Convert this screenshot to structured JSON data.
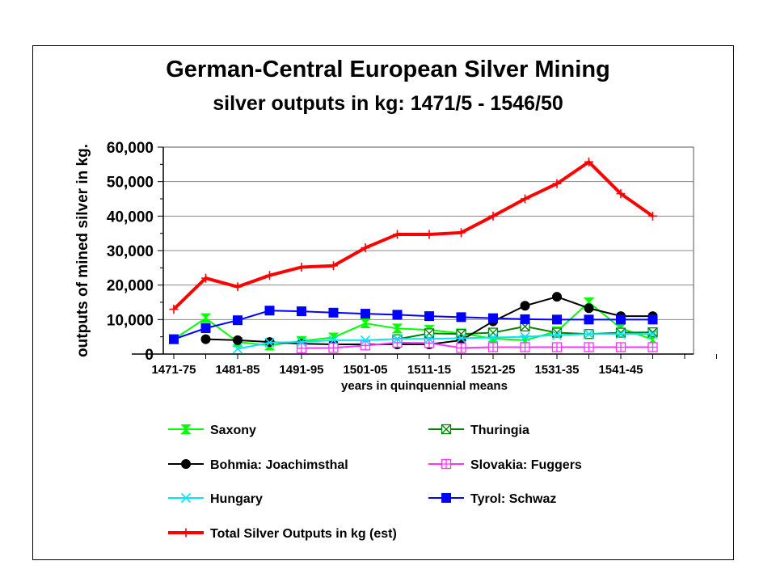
{
  "chart_data": {
    "type": "line",
    "title": "German-Central European Silver Mining",
    "subtitle": "silver outputs in kg: 1471/5 - 1546/50",
    "xlabel": "years in quinquennial means",
    "ylabel": "outputs of mined silver in kg.",
    "x_tick_labels": [
      "1471-75",
      "1481-85",
      "1491-95",
      "1501-05",
      "1511-15",
      "1521-25",
      "1531-35",
      "1541-45"
    ],
    "y_tick_labels": [
      "0",
      "10,000",
      "20,000",
      "30,000",
      "40,000",
      "50,000",
      "60,000"
    ],
    "ylim": [
      0,
      60000
    ],
    "grid": "horizontal",
    "legend_position": "bottom",
    "series": [
      {
        "name": "Saxony",
        "color": "#00ff00",
        "marker": "hourglass",
        "values": [
          4300,
          10400,
          3500,
          2500,
          3800,
          4800,
          8900,
          7400,
          7000,
          6000,
          4500,
          4000,
          6600,
          15000,
          7500,
          4200
        ]
      },
      {
        "name": "Thuringia",
        "color": "#008000",
        "marker": "crossed-square",
        "values": [
          null,
          null,
          null,
          null,
          null,
          null,
          null,
          4300,
          6000,
          5800,
          6200,
          8000,
          6200,
          5800,
          6200,
          6300
        ]
      },
      {
        "name": "Bohmia: Joachimsthal",
        "color": "#000000",
        "marker": "circle",
        "values": [
          null,
          4300,
          4000,
          3500,
          3000,
          2800,
          2800,
          2800,
          2800,
          4000,
          9500,
          14000,
          16600,
          13300,
          11000,
          11000
        ]
      },
      {
        "name": "Slovakia: Fuggers",
        "color": "#ff33ff",
        "marker": "crossed-box",
        "values": [
          null,
          null,
          null,
          null,
          1700,
          1800,
          2500,
          3300,
          3200,
          1800,
          2000,
          2000,
          2000,
          2000,
          2000,
          2000
        ]
      },
      {
        "name": "Hungary",
        "color": "#00e5ff",
        "marker": "x",
        "values": [
          4300,
          null,
          1500,
          3300,
          3500,
          4000,
          4000,
          4400,
          4400,
          4600,
          4800,
          5000,
          5500,
          5800,
          5800,
          5800
        ]
      },
      {
        "name": "Tyrol: Schwaz",
        "color": "#0000ff",
        "marker": "square",
        "values": [
          4300,
          7500,
          9800,
          12600,
          12400,
          12000,
          11700,
          11400,
          11000,
          10700,
          10400,
          10100,
          10000,
          10000,
          10000,
          10000
        ]
      },
      {
        "name": "Total Silver Outputs in kg (est)",
        "color": "#ff0000",
        "marker": "plus",
        "values": [
          13000,
          22000,
          19500,
          22800,
          25200,
          25600,
          30800,
          34700,
          34700,
          35200,
          40000,
          45000,
          49400,
          55700,
          46500,
          40000
        ]
      }
    ]
  }
}
